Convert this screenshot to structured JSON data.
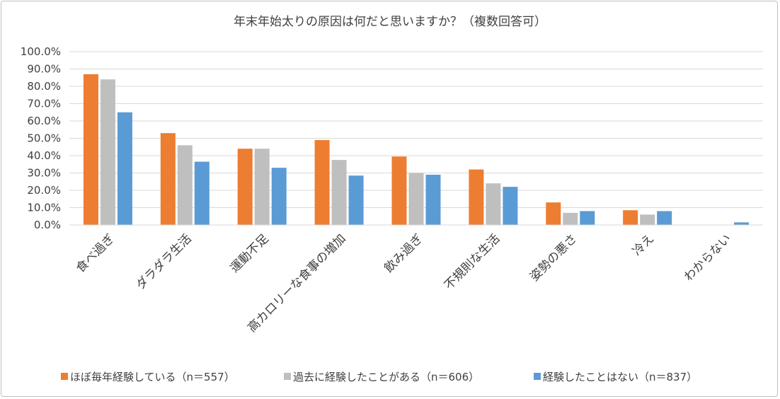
{
  "chart_data": {
    "type": "bar",
    "title": "年末年始太りの原因は何だと思いますか？（複数回答可）",
    "xlabel": "",
    "ylabel": "",
    "ylim": [
      0,
      100
    ],
    "yticks": [
      "0.0%",
      "10.0%",
      "20.0%",
      "30.0%",
      "40.0%",
      "50.0%",
      "60.0%",
      "70.0%",
      "80.0%",
      "90.0%",
      "100.0%"
    ],
    "categories": [
      "食べ過ぎ",
      "ダラダラ生活",
      "運動不足",
      "高カロリーな食事の増加",
      "飲み過ぎ",
      "不規則な生活",
      "姿勢の悪さ",
      "冷え",
      "わからない"
    ],
    "series": [
      {
        "name": "ほぼ毎年経験している（n＝557）",
        "color": "#ED7D31",
        "values": [
          87.0,
          53.0,
          44.0,
          49.0,
          39.5,
          32.0,
          13.0,
          8.5,
          0.0
        ]
      },
      {
        "name": "過去に経験したことがある（n＝606）",
        "color": "#BFBFBF",
        "values": [
          84.0,
          46.0,
          44.0,
          37.5,
          30.0,
          24.0,
          7.0,
          6.0,
          0.0
        ]
      },
      {
        "name": "経験したことはない（n＝837）",
        "color": "#5B9BD5",
        "values": [
          65.0,
          36.5,
          33.0,
          28.5,
          29.0,
          22.0,
          8.0,
          8.0,
          1.5
        ]
      }
    ],
    "legend_position": "bottom",
    "grid": true
  }
}
